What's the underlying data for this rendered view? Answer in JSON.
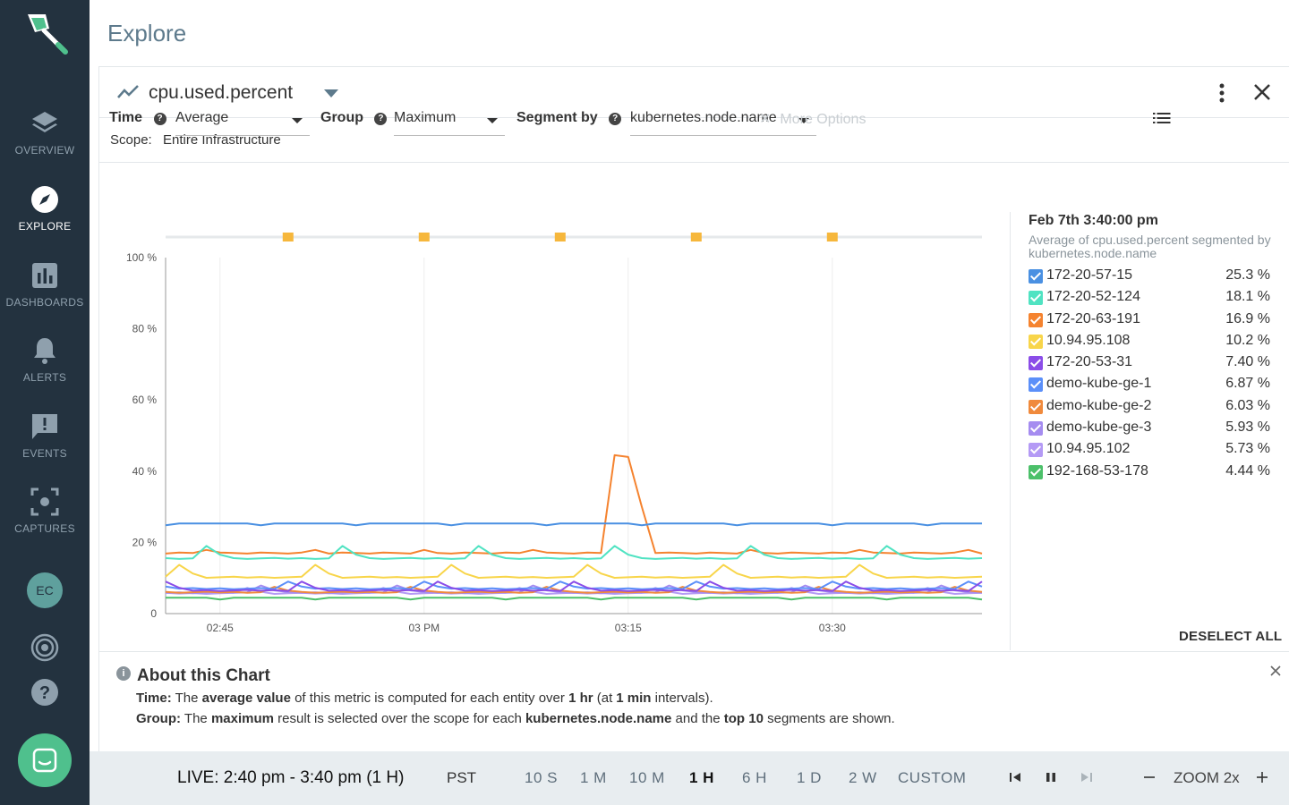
{
  "sidebar": {
    "items": [
      {
        "label": "OVERVIEW",
        "icon": "layers-icon"
      },
      {
        "label": "EXPLORE",
        "icon": "compass-icon"
      },
      {
        "label": "DASHBOARDS",
        "icon": "bar-chart-icon"
      },
      {
        "label": "ALERTS",
        "icon": "bell-icon"
      },
      {
        "label": "EVENTS",
        "icon": "message-alert-icon"
      },
      {
        "label": "CAPTURES",
        "icon": "capture-icon"
      }
    ],
    "avatar": "EC",
    "active": "EXPLORE"
  },
  "header": {
    "title": "Explore"
  },
  "metric": {
    "name": "cpu.used.percent"
  },
  "scope": {
    "label": "Scope:",
    "value": "Entire Infrastructure"
  },
  "controls": {
    "time_label": "Time",
    "time_value": "Average",
    "group_label": "Group",
    "group_value": "Maximum",
    "segment_label": "Segment by",
    "segment_value": "kubernetes.node.name",
    "more_options": "More Options",
    "help_glyph": "?"
  },
  "chart_data": {
    "type": "line",
    "title": "cpu.used.percent",
    "ylim": [
      0,
      100
    ],
    "y_ticks": [
      "0",
      "20 %",
      "40 %",
      "60 %",
      "80 %",
      "100 %"
    ],
    "x_ticks": [
      "02:45",
      "03 PM",
      "03:15",
      "03:30"
    ],
    "x_range_minutes": [
      0,
      60
    ],
    "x_tick_minutes": [
      4,
      19,
      34,
      49
    ],
    "event_minutes": [
      9,
      19,
      29,
      39,
      49
    ],
    "series": [
      {
        "name": "172-20-57-15",
        "color": "#4a90e2",
        "pattern": "flat",
        "base": 25.3
      },
      {
        "name": "172-20-52-124",
        "color": "#50e3c2",
        "pattern": "bumps",
        "base": 15.5,
        "bump": 3.5
      },
      {
        "name": "172-20-63-191",
        "color": "#f5832f",
        "pattern": "spike",
        "base": 17.0,
        "bump": 1.5,
        "spike": 44.5
      },
      {
        "name": "10.94.95.108",
        "color": "#f8d54a",
        "pattern": "bumps",
        "base": 10.2,
        "bump": 3.5
      },
      {
        "name": "172-20-53-31",
        "color": "#8b4de8",
        "pattern": "bumps",
        "base": 6.5,
        "bump": 2.5
      },
      {
        "name": "demo-kube-ge-1",
        "color": "#5b8ff9",
        "pattern": "bumps",
        "base": 7.0,
        "bump": 2.0
      },
      {
        "name": "demo-kube-ge-2",
        "color": "#f08a3c",
        "pattern": "bumps",
        "base": 6.0,
        "bump": 1.5
      },
      {
        "name": "demo-kube-ge-3",
        "color": "#a58cf0",
        "pattern": "bumps",
        "base": 5.9,
        "bump": 2.0
      },
      {
        "name": "10.94.95.102",
        "color": "#b49af5",
        "pattern": "bumps",
        "base": 5.7,
        "bump": 1.5
      },
      {
        "name": "192-168-53-178",
        "color": "#4cc06a",
        "pattern": "flat",
        "base": 4.44
      }
    ]
  },
  "legend": {
    "time": "Feb 7th 3:40:00 pm",
    "description": "Average of cpu.used.percent segmented by kubernetes.node.name",
    "items": [
      {
        "name": "172-20-57-15",
        "value": "25.3 %",
        "color": "#4a90e2"
      },
      {
        "name": "172-20-52-124",
        "value": "18.1 %",
        "color": "#50e3c2"
      },
      {
        "name": "172-20-63-191",
        "value": "16.9 %",
        "color": "#f5832f"
      },
      {
        "name": "10.94.95.108",
        "value": "10.2 %",
        "color": "#f8d54a"
      },
      {
        "name": "172-20-53-31",
        "value": "7.40 %",
        "color": "#8b4de8"
      },
      {
        "name": "demo-kube-ge-1",
        "value": "6.87 %",
        "color": "#5b8ff9"
      },
      {
        "name": "demo-kube-ge-2",
        "value": "6.03 %",
        "color": "#f08a3c"
      },
      {
        "name": "demo-kube-ge-3",
        "value": "5.93 %",
        "color": "#a58cf0"
      },
      {
        "name": "10.94.95.102",
        "value": "5.73 %",
        "color": "#b49af5"
      },
      {
        "name": "192-168-53-178",
        "value": "4.44 %",
        "color": "#4cc06a"
      }
    ],
    "deselect_all": "DESELECT ALL"
  },
  "about": {
    "title": "About this Chart",
    "time_line": {
      "k": "Time:",
      "a": "The",
      "b": "average value",
      "c": "of this metric is computed for each entity over",
      "d": "1 hr",
      "e": "(at",
      "f": "1 min",
      "g": "intervals)."
    },
    "group_line": {
      "k": "Group:",
      "a": "The",
      "b": "maximum",
      "c": "result is selected over the scope for each",
      "d": "kubernetes.node.name",
      "e": "and the",
      "f": "top 10",
      "g": "segments are shown."
    }
  },
  "bottom": {
    "live": "LIVE: 2:40 pm - 3:40 pm (1 H)",
    "timezone": "PST",
    "ranges": [
      "10 S",
      "1 M",
      "10 M",
      "1 H",
      "6 H",
      "1 D",
      "2 W",
      "CUSTOM"
    ],
    "active_range": "1 H",
    "zoom": "ZOOM 2x"
  }
}
